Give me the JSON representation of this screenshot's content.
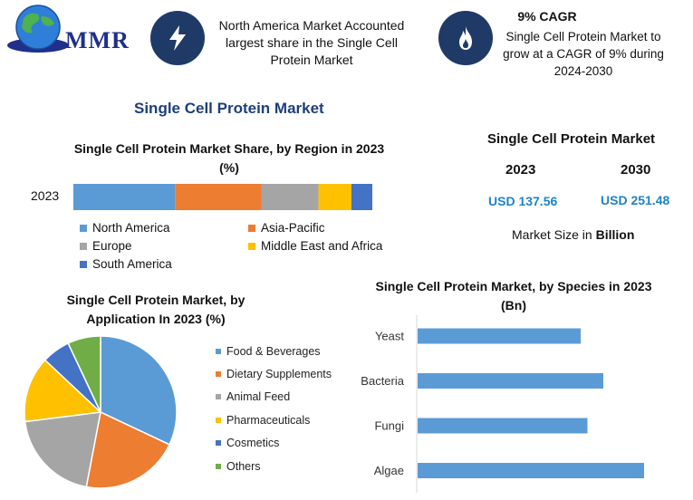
{
  "brand": {
    "logo_text": "MMR"
  },
  "info_cards": [
    {
      "icon": "lightning-icon",
      "text": "North America Market Accounted largest share in the Single Cell Protein Market"
    },
    {
      "icon": "flame-icon",
      "title": "9% CAGR",
      "text": "Single Cell Protein Market to grow at a CAGR of 9% during 2024-2030"
    }
  ],
  "main_title": "Single Cell Protein Market",
  "market_size": {
    "title": "Single Cell Protein Market",
    "years": [
      "2023",
      "2030"
    ],
    "values": [
      "USD 137.56",
      "USD 251.48"
    ],
    "note_prefix": "Market Size in ",
    "note_unit": "Billion"
  },
  "colors": {
    "blue": "#5b9bd5",
    "orange": "#ed7d31",
    "gray": "#a5a5a5",
    "yellow": "#ffc000",
    "dark_blue": "#4472c4",
    "green": "#70ad47",
    "accent": "#1f3f7a",
    "usd": "#1f82c6"
  },
  "chart_data": [
    {
      "type": "bar",
      "orientation": "horizontal-stacked",
      "title": "Single Cell Protein Market Share, by Region in 2023 (%)",
      "categories": [
        "2023"
      ],
      "series": [
        {
          "name": "North America",
          "values": [
            34
          ]
        },
        {
          "name": "Asia-Pacific",
          "values": [
            29
          ]
        },
        {
          "name": "Europe",
          "values": [
            19
          ]
        },
        {
          "name": "Middle East and Africa",
          "values": [
            11
          ]
        },
        {
          "name": "South America",
          "values": [
            7
          ]
        }
      ],
      "legend_position": "bottom"
    },
    {
      "type": "pie",
      "title": "Single Cell Protein Market, by Application In 2023 (%)",
      "labels": [
        "Food & Beverages",
        "Dietary Supplements",
        "Animal Feed",
        "Pharmaceuticals",
        "Cosmetics",
        "Others"
      ],
      "values": [
        32,
        21,
        20,
        14,
        6,
        7
      ],
      "legend_position": "right"
    },
    {
      "type": "bar",
      "orientation": "horizontal",
      "title": "Single Cell Protein Market, by Species in 2023 (Bn)",
      "categories": [
        "Yeast",
        "Bacteria",
        "Fungi",
        "Algae"
      ],
      "values": [
        36,
        41,
        37.5,
        50
      ],
      "xlim": [
        0,
        60
      ]
    }
  ]
}
